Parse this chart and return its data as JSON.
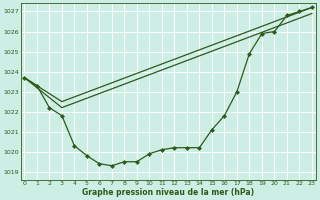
{
  "background_color": "#cceee4",
  "grid_color": "#ffffff",
  "line_color": "#2d5a1b",
  "title": "Graphe pression niveau de la mer (hPa)",
  "xlim": [
    -0.3,
    23.3
  ],
  "ylim": [
    1018.6,
    1027.4
  ],
  "yticks": [
    1019,
    1020,
    1021,
    1022,
    1023,
    1024,
    1025,
    1026,
    1027
  ],
  "xticks": [
    0,
    1,
    2,
    3,
    4,
    5,
    6,
    7,
    8,
    9,
    10,
    11,
    12,
    13,
    14,
    15,
    16,
    17,
    18,
    19,
    20,
    21,
    22,
    23
  ],
  "line1_x": [
    0,
    1,
    2,
    3,
    4,
    5,
    6,
    7,
    8,
    9,
    10,
    11,
    12,
    13,
    14,
    15,
    16,
    17,
    18,
    19,
    20,
    21,
    22,
    23
  ],
  "line1_y": [
    1023.7,
    1023.3,
    1022.2,
    1021.8,
    1020.3,
    1019.8,
    1019.4,
    1019.3,
    1019.5,
    1019.5,
    1019.9,
    1020.1,
    1020.2,
    1020.2,
    1020.2,
    1021.1,
    1021.8,
    1023.0,
    1024.9,
    1025.9,
    1026.0,
    1026.8,
    1027.0,
    1027.2
  ],
  "line2_x": [
    0,
    3,
    23
  ],
  "line2_y": [
    1023.7,
    1022.5,
    1027.2
  ],
  "line3_x": [
    0,
    3,
    23
  ],
  "line3_y": [
    1023.7,
    1022.2,
    1026.9
  ]
}
